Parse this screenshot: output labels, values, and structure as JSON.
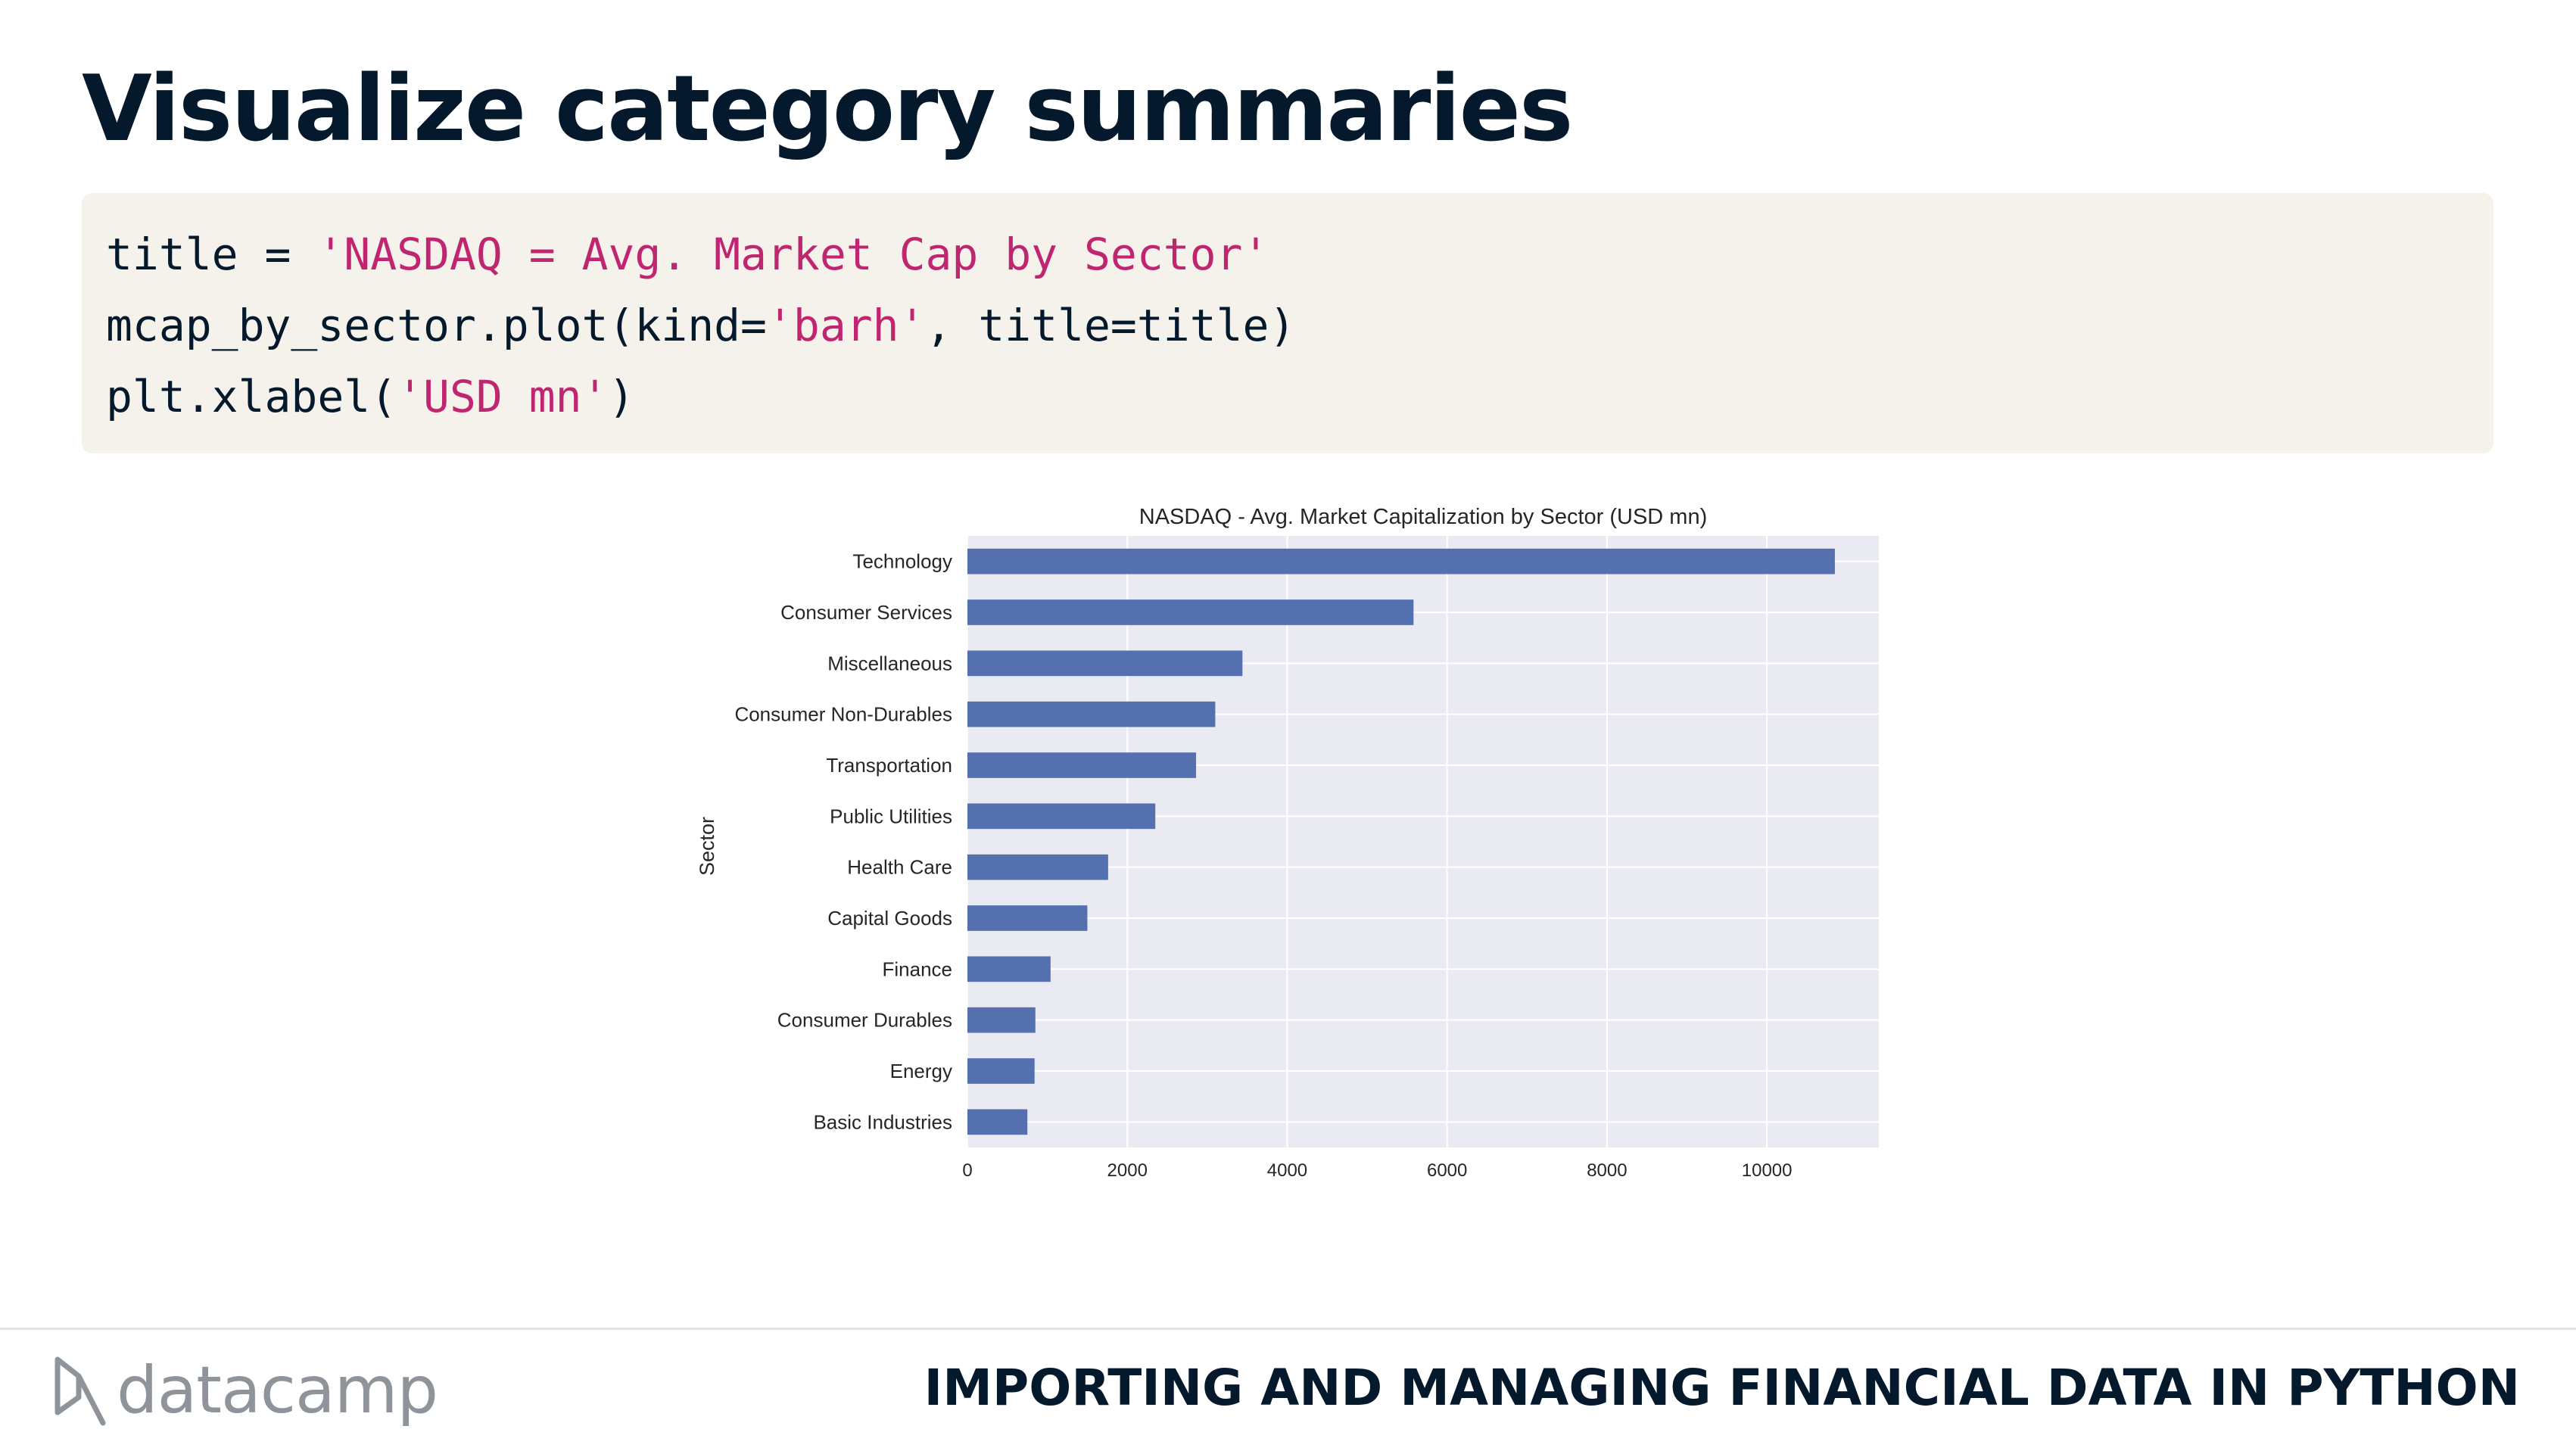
{
  "slide": {
    "title": "Visualize category summaries",
    "course_name": "IMPORTING AND MANAGING FINANCIAL DATA IN PYTHON",
    "logo_text": "datacamp"
  },
  "code": {
    "line1": {
      "a": "title = ",
      "s": "'NASDAQ = Avg. Market Cap by Sector'"
    },
    "line2": {
      "a": "mcap_by_sector.plot(kind=",
      "s": "'barh'",
      "b": ", title=title)"
    },
    "line3": {
      "a": "plt.xlabel(",
      "s": "'USD mn'",
      "b": ")"
    }
  },
  "colors": {
    "bar": "#5470ae",
    "plot_bg": "#eaeaf2",
    "title_text": "#05192d",
    "code_string": "#c02670"
  },
  "chart_data": {
    "type": "bar",
    "orientation": "horizontal",
    "title": "NASDAQ - Avg. Market Capitalization by Sector (USD mn)",
    "xlabel": "",
    "ylabel": "Sector",
    "categories": [
      "Technology",
      "Consumer Services",
      "Miscellaneous",
      "Consumer Non-Durables",
      "Transportation",
      "Public Utilities",
      "Health Care",
      "Capital Goods",
      "Finance",
      "Consumer Durables",
      "Energy",
      "Basic Industries"
    ],
    "values": [
      10850,
      5580,
      3440,
      3100,
      2860,
      2350,
      1760,
      1500,
      1040,
      850,
      840,
      750
    ],
    "xlim": [
      0,
      11400
    ],
    "xticks": [
      0,
      2000,
      4000,
      6000,
      8000,
      10000
    ],
    "grid": true,
    "legend": "none"
  }
}
